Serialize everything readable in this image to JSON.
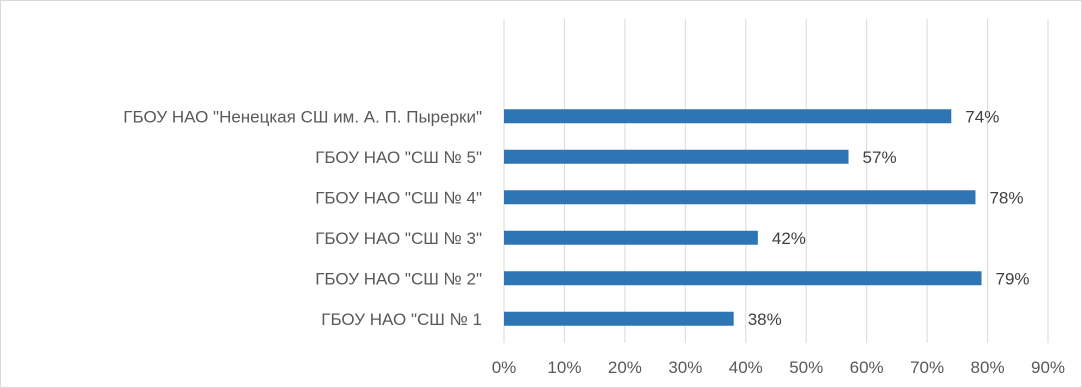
{
  "chart_data": {
    "type": "bar",
    "orientation": "horizontal",
    "title": "",
    "xlabel": "",
    "ylabel": "",
    "categories": [
      "ГБОУ НАО \"Ненецкая СШ им. А. П. Пырерки\"",
      "ГБОУ НАО \"СШ № 5\"",
      "ГБОУ НАО \"СШ № 4\"",
      "ГБОУ НАО \"СШ № 3\"",
      "ГБОУ НАО \"СШ № 2\"",
      "ГБОУ НАО \"СШ № 1"
    ],
    "values": [
      74,
      57,
      78,
      42,
      79,
      38
    ],
    "data_labels": [
      "74%",
      "57%",
      "78%",
      "42%",
      "79%",
      "38%"
    ],
    "xlim": [
      0,
      90
    ],
    "x_ticks": [
      0,
      10,
      20,
      30,
      40,
      50,
      60,
      70,
      80,
      90
    ],
    "x_tick_labels": [
      "0%",
      "10%",
      "20%",
      "30%",
      "40%",
      "50%",
      "60%",
      "70%",
      "80%",
      "90%"
    ],
    "grid": true,
    "legend": "none",
    "bar_color": "#2e75b6",
    "grid_color": "#d9d9d9"
  }
}
